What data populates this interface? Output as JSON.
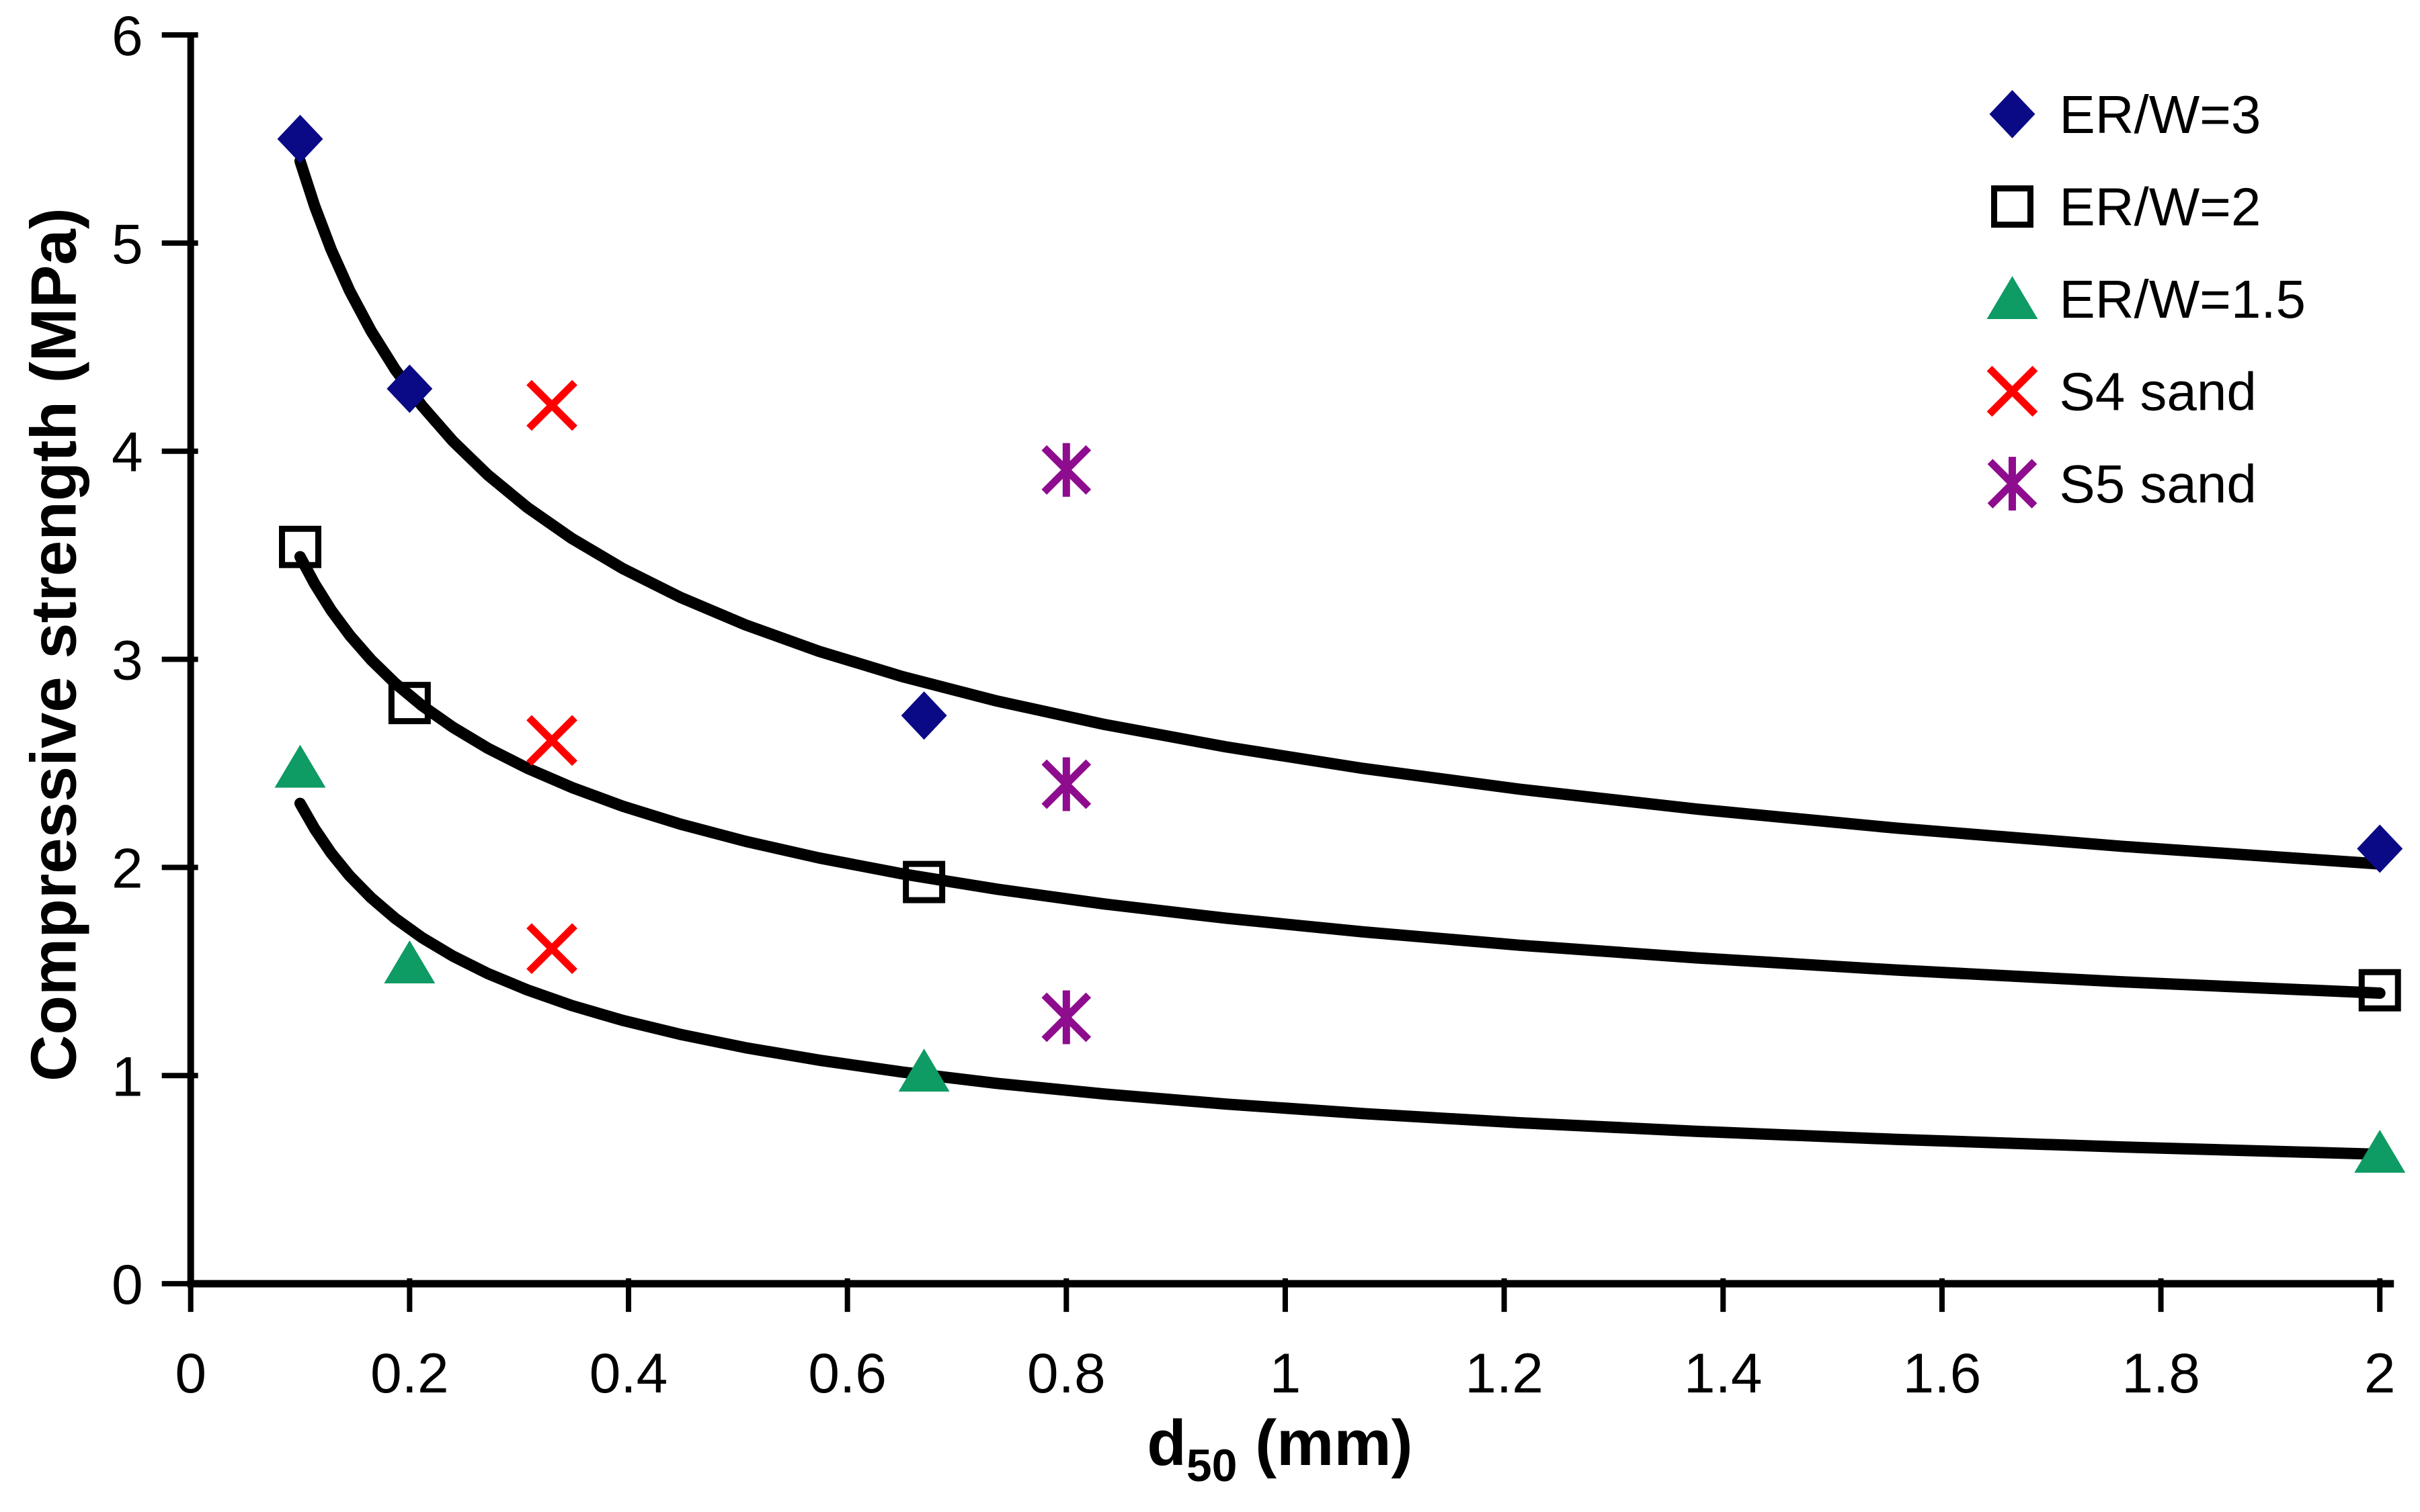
{
  "window": {
    "background_color": "#FFFFFF",
    "text_color": "#000000"
  },
  "chart_data": {
    "type": "scatter",
    "title": "",
    "xlabel": {
      "base": "d",
      "sub": "50",
      "rest": " (mm)"
    },
    "ylabel": "Compressive strength (MPa)",
    "x_axis": {
      "min": 0,
      "max": 2,
      "tick_interval": 0.2,
      "tick_values": [
        0,
        0.2,
        0.4,
        0.6,
        0.8,
        1,
        1.2,
        1.4,
        1.6,
        1.8,
        2
      ],
      "tick_labels": [
        "0",
        "0.2",
        "0.4",
        "0.6",
        "0.8",
        "1",
        "1.2",
        "1.4",
        "1.6",
        "1.8",
        "2"
      ]
    },
    "y_axis": {
      "min": 0,
      "max": 6,
      "tick_interval": 1,
      "tick_values": [
        0,
        1,
        2,
        3,
        4,
        5,
        6
      ],
      "tick_labels": [
        "0",
        "1",
        "2",
        "3",
        "4",
        "5",
        "6"
      ]
    },
    "grid": false,
    "legend_position": "top-right-inside",
    "series": [
      {
        "name": "ER/W=3",
        "marker": "diamond",
        "color": "#0A0A86",
        "points": [
          [
            0.1,
            5.5
          ],
          [
            0.2,
            4.3
          ],
          [
            0.67,
            2.73
          ],
          [
            2,
            2.09
          ]
        ]
      },
      {
        "name": "ER/W=2",
        "marker": "square-open",
        "color": "#000000",
        "points": [
          [
            0.1,
            3.54
          ],
          [
            0.2,
            2.79
          ],
          [
            0.67,
            1.93
          ],
          [
            2,
            1.41
          ]
        ]
      },
      {
        "name": "ER/W=1.5",
        "marker": "triangle",
        "color": "#0E9B64",
        "points": [
          [
            0.1,
            2.48
          ],
          [
            0.2,
            1.54
          ],
          [
            0.67,
            1.02
          ],
          [
            2,
            0.63
          ]
        ]
      },
      {
        "name": "S4 sand",
        "marker": "x",
        "color": "#FF0000",
        "points": [
          [
            0.33,
            4.22
          ],
          [
            0.33,
            2.61
          ],
          [
            0.33,
            1.61
          ]
        ]
      },
      {
        "name": "S5 sand",
        "marker": "asterisk",
        "color": "#8E0C8E",
        "points": [
          [
            0.8,
            3.91
          ],
          [
            0.8,
            2.4
          ],
          [
            0.8,
            1.28
          ]
        ]
      }
    ],
    "trendlines": [
      {
        "series": "ER/W=3",
        "model": "power",
        "a": 2.5325,
        "b": -0.3283,
        "x_start": 0.1,
        "x_end": 2,
        "color": "#000000"
      },
      {
        "series": "ER/W=2",
        "model": "power",
        "a": 1.7262,
        "b": -0.3061,
        "x_start": 0.1,
        "x_end": 2,
        "color": "#000000"
      },
      {
        "series": "ER/W=1.5",
        "model": "power",
        "a": 0.8422,
        "b": -0.4378,
        "x_start": 0.1,
        "x_end": 2,
        "color": "#000000"
      }
    ]
  }
}
